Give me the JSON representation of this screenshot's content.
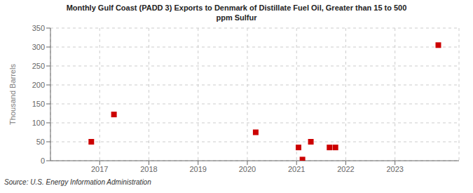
{
  "chart_data": {
    "type": "scatter",
    "title": "Monthly Gulf Coast (PADD 3) Exports to Denmark of Distillate Fuel Oil, Greater than 15 to 500\nppm Sulfur",
    "ylabel": "Thousand Barrels",
    "source": "Source: U.S. Energy Information Administration",
    "x": [
      2016.83,
      2017.29,
      2020.17,
      2021.04,
      2021.12,
      2021.29,
      2021.67,
      2021.79,
      2023.88
    ],
    "values": [
      50,
      122,
      75,
      35,
      3,
      50,
      35,
      35,
      305
    ],
    "color": "#cc0000",
    "marker": "square",
    "xlim": [
      2016.0,
      2024.3
    ],
    "ylim": [
      0,
      350
    ],
    "xticks": [
      2017,
      2018,
      2019,
      2020,
      2021,
      2022,
      2023
    ],
    "yticks": [
      0,
      50,
      100,
      150,
      200,
      250,
      300,
      350
    ],
    "grid": true
  }
}
